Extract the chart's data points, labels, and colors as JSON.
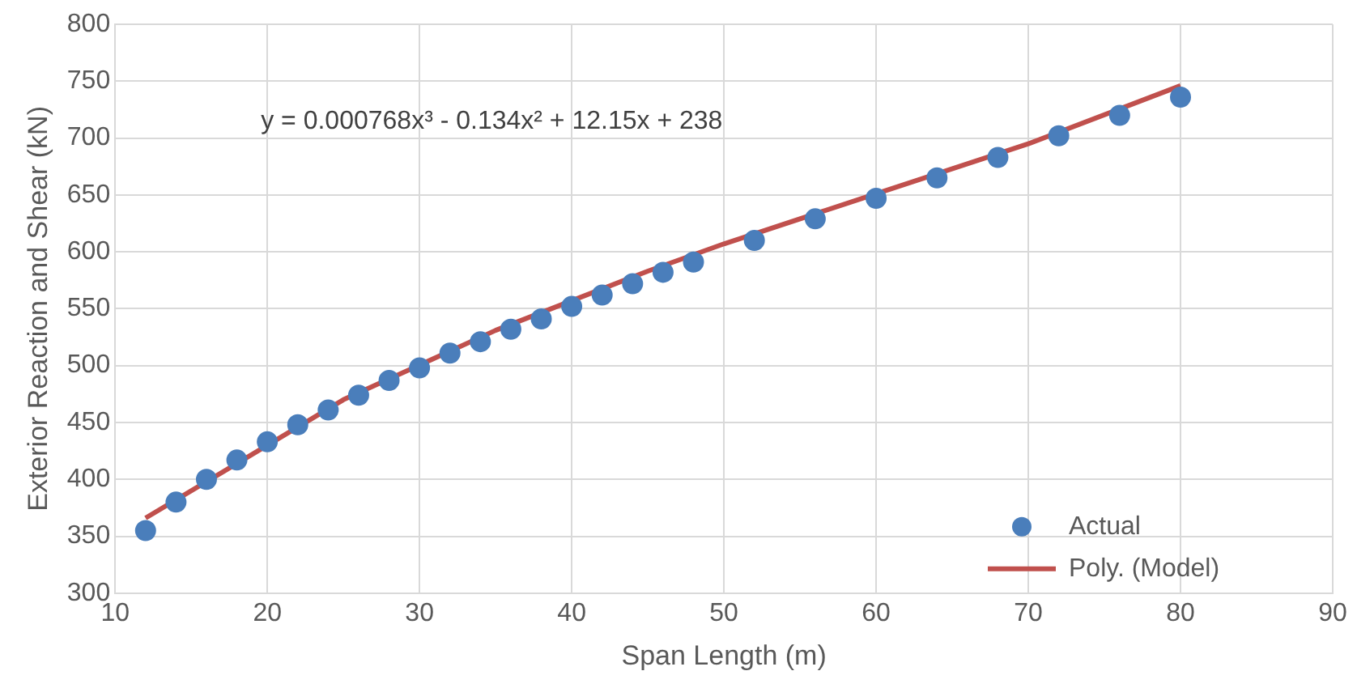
{
  "chart_data": {
    "type": "scatter",
    "xlabel": "Span Length (m)",
    "ylabel": "Exterior Reaction and Shear (kN)",
    "annotations": [
      "y = 0.000768x³ - 0.134x² + 12.15x + 238"
    ],
    "xlim": [
      10,
      90
    ],
    "xticks": [
      10,
      20,
      30,
      40,
      50,
      60,
      70,
      80,
      90
    ],
    "ylim": [
      300,
      800
    ],
    "yticks": [
      300,
      350,
      400,
      450,
      500,
      550,
      600,
      650,
      700,
      750,
      800
    ],
    "grid": true,
    "legend": "bottom right",
    "series": [
      {
        "name": "Actual",
        "marker": "circle",
        "color": "#4a7ebb",
        "x": [
          12,
          14,
          16,
          18,
          20,
          22,
          24,
          26,
          28,
          30,
          32,
          34,
          36,
          38,
          40,
          42,
          44,
          46,
          48,
          52,
          56,
          60,
          64,
          68,
          72,
          76,
          80
        ],
        "values": [
          355,
          380,
          400,
          417,
          433,
          448,
          461,
          474,
          487,
          498,
          511,
          521,
          532,
          541,
          552,
          562,
          572,
          582,
          591,
          610,
          629,
          647,
          665,
          683,
          702,
          720,
          736
        ]
      },
      {
        "name": "Poly. (Model)",
        "type": "line",
        "marker": "none",
        "line_style": "solid",
        "color": "#c0504d",
        "x": [
          12,
          25,
          35,
          45,
          50,
          60,
          70,
          80
        ],
        "values": [
          366,
          470,
          531,
          583,
          607,
          651,
          695,
          746
        ]
      }
    ]
  }
}
